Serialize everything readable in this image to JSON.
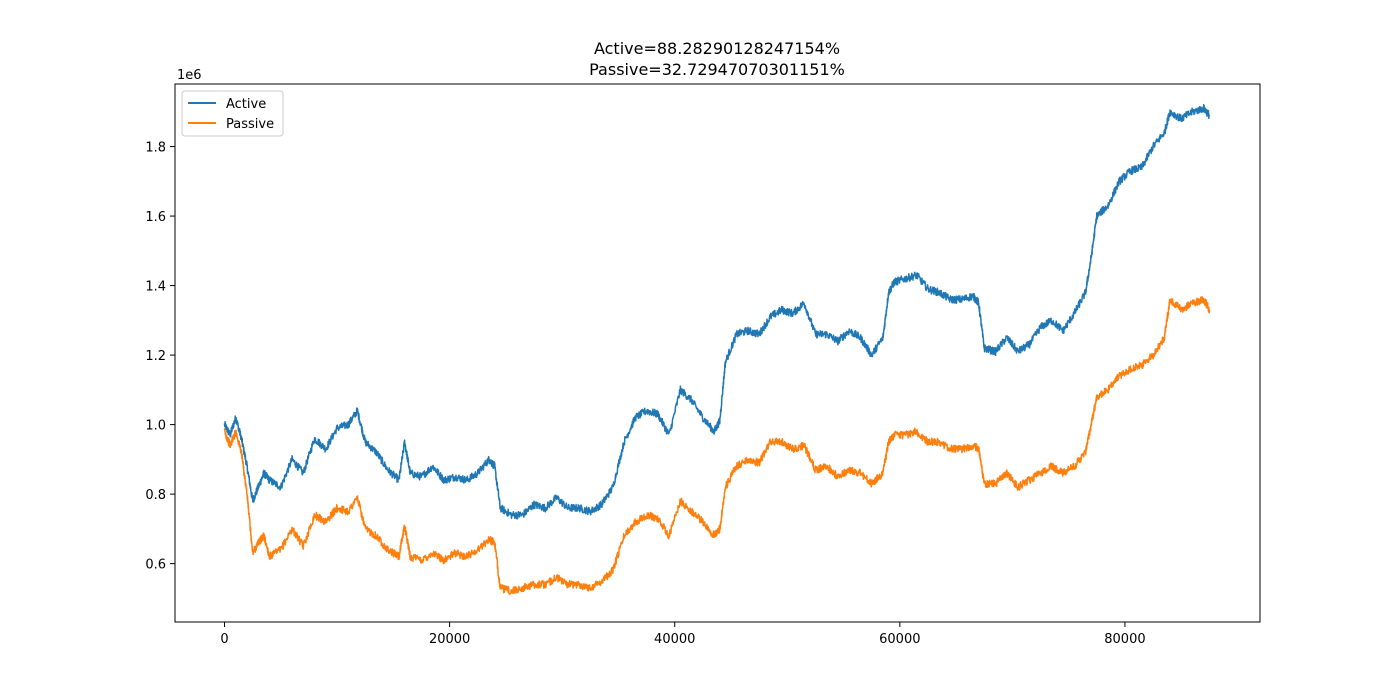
{
  "chart_data": {
    "type": "line",
    "title_lines": [
      "Active=88.28290128247154%",
      "Passive=32.72947070301151%"
    ],
    "xlabel": "",
    "ylabel": "",
    "y_offset_label": "1e6",
    "xlim": [
      -4400,
      92000
    ],
    "ylim": [
      0.432,
      1.98
    ],
    "x_ticks": [
      0,
      20000,
      40000,
      60000,
      80000
    ],
    "x_tick_labels": [
      "0",
      "20000",
      "40000",
      "60000",
      "80000"
    ],
    "y_ticks": [
      0.6,
      0.8,
      1.0,
      1.2,
      1.4,
      1.6,
      1.8
    ],
    "y_tick_labels": [
      "0.6",
      "0.8",
      "1.0",
      "1.2",
      "1.4",
      "1.6",
      "1.8"
    ],
    "grid": false,
    "legend_position": "top-left",
    "series": [
      {
        "name": "Active",
        "color": "#1f77b4",
        "x": [
          0,
          500,
          1000,
          1500,
          2000,
          2500,
          3000,
          3500,
          4000,
          5000,
          6000,
          7000,
          8000,
          9000,
          10000,
          11000,
          11800,
          12500,
          13500,
          14500,
          15500,
          16000,
          16500,
          17500,
          18500,
          19500,
          20500,
          21500,
          22500,
          23500,
          24000,
          24500,
          25500,
          26500,
          27500,
          28500,
          29500,
          30500,
          31500,
          32500,
          33500,
          34500,
          35500,
          36500,
          37500,
          38500,
          39500,
          40500,
          41500,
          42500,
          43500,
          44000,
          44500,
          45500,
          46500,
          47500,
          48500,
          49500,
          50500,
          51500,
          52500,
          53500,
          54500,
          55500,
          56500,
          57500,
          58500,
          59000,
          59500,
          60500,
          61500,
          62500,
          63500,
          64500,
          65500,
          66500,
          67000,
          67500,
          68500,
          69500,
          70500,
          71500,
          72500,
          73500,
          74500,
          75500,
          76500,
          77000,
          77500,
          78500,
          79500,
          80500,
          81500,
          82500,
          83500,
          84000,
          85000,
          86000,
          87000,
          87500
        ],
        "values": [
          1.0,
          0.97,
          1.02,
          0.96,
          0.88,
          0.78,
          0.82,
          0.86,
          0.84,
          0.82,
          0.9,
          0.86,
          0.96,
          0.93,
          0.99,
          1.0,
          1.04,
          0.95,
          0.92,
          0.87,
          0.84,
          0.95,
          0.86,
          0.85,
          0.88,
          0.84,
          0.85,
          0.84,
          0.86,
          0.9,
          0.88,
          0.76,
          0.74,
          0.74,
          0.77,
          0.76,
          0.79,
          0.76,
          0.76,
          0.75,
          0.77,
          0.82,
          0.95,
          1.02,
          1.04,
          1.03,
          0.97,
          1.1,
          1.07,
          1.02,
          0.98,
          1.01,
          1.18,
          1.26,
          1.27,
          1.26,
          1.31,
          1.33,
          1.32,
          1.35,
          1.26,
          1.26,
          1.24,
          1.27,
          1.25,
          1.2,
          1.25,
          1.38,
          1.41,
          1.42,
          1.43,
          1.39,
          1.38,
          1.36,
          1.36,
          1.37,
          1.35,
          1.22,
          1.21,
          1.25,
          1.21,
          1.23,
          1.28,
          1.3,
          1.27,
          1.32,
          1.38,
          1.48,
          1.6,
          1.63,
          1.7,
          1.73,
          1.74,
          1.8,
          1.84,
          1.9,
          1.88,
          1.9,
          1.91,
          1.89
        ]
      },
      {
        "name": "Passive",
        "color": "#ff7f0e",
        "x": [
          0,
          500,
          1000,
          1500,
          2000,
          2500,
          3000,
          3500,
          4000,
          5000,
          6000,
          7000,
          8000,
          9000,
          10000,
          11000,
          11800,
          12500,
          13500,
          14500,
          15500,
          16000,
          16500,
          17500,
          18500,
          19500,
          20500,
          21500,
          22500,
          23500,
          24000,
          24500,
          25500,
          26500,
          27500,
          28500,
          29500,
          30500,
          31500,
          32500,
          33500,
          34500,
          35500,
          36500,
          37500,
          38500,
          39500,
          40500,
          41500,
          42500,
          43500,
          44000,
          44500,
          45500,
          46500,
          47500,
          48500,
          49500,
          50500,
          51500,
          52500,
          53500,
          54500,
          55500,
          56500,
          57500,
          58500,
          59000,
          59500,
          60500,
          61500,
          62500,
          63500,
          64500,
          65500,
          66500,
          67000,
          67500,
          68500,
          69500,
          70500,
          71500,
          72500,
          73500,
          74500,
          75500,
          76500,
          77000,
          77500,
          78500,
          79500,
          80500,
          81500,
          82500,
          83500,
          84000,
          85000,
          86000,
          87000,
          87500
        ],
        "values": [
          0.98,
          0.94,
          0.98,
          0.92,
          0.8,
          0.63,
          0.66,
          0.68,
          0.62,
          0.64,
          0.7,
          0.65,
          0.74,
          0.72,
          0.76,
          0.75,
          0.79,
          0.7,
          0.68,
          0.64,
          0.62,
          0.71,
          0.62,
          0.61,
          0.63,
          0.61,
          0.63,
          0.62,
          0.64,
          0.67,
          0.66,
          0.53,
          0.52,
          0.53,
          0.54,
          0.54,
          0.56,
          0.54,
          0.54,
          0.53,
          0.55,
          0.58,
          0.68,
          0.72,
          0.74,
          0.73,
          0.68,
          0.78,
          0.75,
          0.72,
          0.68,
          0.7,
          0.82,
          0.88,
          0.9,
          0.89,
          0.95,
          0.95,
          0.93,
          0.94,
          0.87,
          0.88,
          0.85,
          0.87,
          0.86,
          0.83,
          0.86,
          0.95,
          0.97,
          0.97,
          0.98,
          0.95,
          0.95,
          0.93,
          0.93,
          0.94,
          0.93,
          0.83,
          0.83,
          0.86,
          0.82,
          0.84,
          0.86,
          0.88,
          0.86,
          0.88,
          0.92,
          1.0,
          1.08,
          1.1,
          1.14,
          1.16,
          1.17,
          1.2,
          1.25,
          1.36,
          1.33,
          1.35,
          1.36,
          1.33
        ]
      }
    ]
  }
}
